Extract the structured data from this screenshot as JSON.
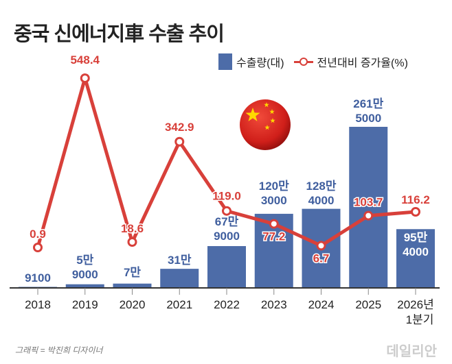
{
  "title": "중국 신에너지車 수출 추이",
  "legend": {
    "bar": "수출량(대)",
    "line": "전년대비 증가율(%)"
  },
  "credit": "그래픽 = 박진희 디자이너",
  "logo": "데일리안",
  "colors": {
    "bar": "#4d6ca8",
    "line": "#d8403a",
    "bar_label": "#3f5e9e"
  },
  "chart_data": {
    "type": "bar+line",
    "title": "중국 신에너지車 수출 추이",
    "categories": [
      "2018",
      "2019",
      "2020",
      "2021",
      "2022",
      "2023",
      "2024",
      "2025",
      "2026년 1분기"
    ],
    "series": [
      {
        "name": "수출량(대)",
        "type": "bar",
        "values": [
          9100,
          59000,
          70000,
          310000,
          679000,
          1203000,
          1284000,
          2615000,
          954000
        ],
        "labels": [
          [
            "9100"
          ],
          [
            "5만",
            "9000"
          ],
          [
            "7만"
          ],
          [
            "31만"
          ],
          [
            "67만",
            "9000"
          ],
          [
            "120만",
            "3000"
          ],
          [
            "128만",
            "4000"
          ],
          [
            "261만",
            "5000"
          ],
          [
            "95만",
            "4000"
          ]
        ]
      },
      {
        "name": "전년대비 증가율(%)",
        "type": "line",
        "values": [
          0.9,
          548.4,
          18.6,
          342.9,
          119.0,
          77.2,
          6.7,
          103.7,
          116.2
        ],
        "labels": [
          "0.9",
          "548.4",
          "18.6",
          "342.9",
          "119.0",
          "77.2",
          "6.7",
          "103.7",
          "116.2"
        ]
      }
    ],
    "grid": false
  }
}
